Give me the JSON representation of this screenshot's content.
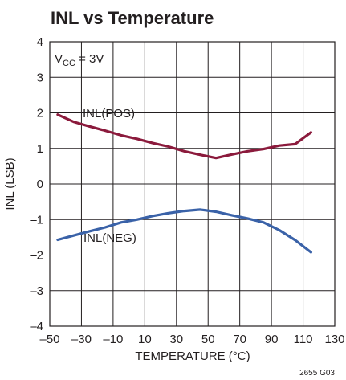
{
  "chart_data": {
    "type": "line",
    "title": "INL vs Temperature",
    "xlabel": "TEMPERATURE (°C)",
    "ylabel": "INL (LSB)",
    "xlim": [
      -50,
      130
    ],
    "ylim": [
      -4,
      4
    ],
    "xticks": [
      -50,
      -30,
      -10,
      10,
      30,
      50,
      70,
      90,
      110,
      130
    ],
    "xtick_labels": [
      "–50",
      "–30",
      "–10",
      "10",
      "30",
      "50",
      "70",
      "90",
      "110",
      "130"
    ],
    "yticks": [
      4,
      3,
      2,
      1,
      0,
      -1,
      -2,
      -3,
      -4
    ],
    "ytick_labels": [
      "4",
      "3",
      "2",
      "1",
      "0",
      "–1",
      "–2",
      "–3",
      "–4"
    ],
    "grid": true,
    "condition": {
      "main": "V",
      "sub": "CC",
      "rest": " = 3V"
    },
    "footnote": "2655 G03",
    "series": [
      {
        "name": "INL(POS)",
        "color": "#8b1a3c",
        "x": [
          -45,
          -35,
          -25,
          -15,
          -5,
          5,
          15,
          25,
          35,
          45,
          55,
          65,
          75,
          85,
          95,
          105,
          115
        ],
        "y": [
          1.95,
          1.75,
          1.62,
          1.5,
          1.37,
          1.27,
          1.15,
          1.05,
          0.92,
          0.82,
          0.73,
          0.83,
          0.92,
          0.98,
          1.08,
          1.12,
          1.45
        ]
      },
      {
        "name": "INL(NEG)",
        "color": "#3a62a8",
        "x": [
          -45,
          -35,
          -25,
          -15,
          -5,
          5,
          15,
          25,
          35,
          45,
          55,
          65,
          75,
          85,
          95,
          105,
          115
        ],
        "y": [
          -1.57,
          -1.45,
          -1.33,
          -1.22,
          -1.08,
          -1.0,
          -0.9,
          -0.82,
          -0.76,
          -0.72,
          -0.78,
          -0.88,
          -0.97,
          -1.08,
          -1.3,
          -1.58,
          -1.92
        ]
      }
    ]
  }
}
